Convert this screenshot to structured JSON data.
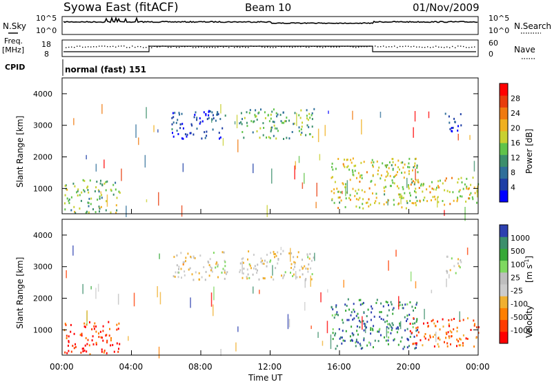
{
  "header": {
    "station": "Syowa East (fitACF)",
    "beam": "Beam 10",
    "date": "01/Nov/2009"
  },
  "top_panel": {
    "left_label": "N.Sky",
    "right_label": "N.Search",
    "left_ticks": [
      "10^5",
      "10^0"
    ],
    "right_ticks": [
      "10^5",
      "10^0"
    ]
  },
  "freq_panel": {
    "left_label_1": "Freq.",
    "left_label_2": "[MHz]",
    "right_label": "Nave",
    "left_ticks": [
      "18",
      "8"
    ],
    "right_ticks": [
      "60",
      "0"
    ]
  },
  "cpid": {
    "label": "CPID",
    "value": "normal (fast) 151"
  },
  "colors": {
    "power_scale": [
      "#0000ff",
      "#1e3fa6",
      "#2f6f9a",
      "#3c8f6c",
      "#60c34a",
      "#c8d030",
      "#f0b020",
      "#f07a10",
      "#e83c0c",
      "#ff0000"
    ],
    "velocity_scale": [
      "#ff0000",
      "#ff3c00",
      "#ff7f00",
      "#f0b030",
      "#cccccc",
      "#bebebe",
      "#7fd860",
      "#36a838",
      "#3c8f6c",
      "#2d40b0"
    ]
  },
  "chart_data": [
    {
      "type": "heatmap",
      "title": "Power",
      "ylabel": "Slant Range [km]",
      "xlabel": "Time UT",
      "ylim": [
        200,
        4500
      ],
      "xlim_hours": [
        0,
        24
      ],
      "x_ticks": [
        "00:00",
        "04:00",
        "08:00",
        "12:00",
        "16:00",
        "20:00",
        "00:00"
      ],
      "y_ticks": [
        "1000",
        "2000",
        "3000",
        "4000"
      ],
      "colorbar": {
        "label": "Power [dB]",
        "ticks": [
          "28",
          "24",
          "20",
          "16",
          "12",
          "8",
          "4"
        ]
      },
      "regions": [
        {
          "t0": 0.1,
          "t1": 3.3,
          "r0": 250,
          "r1": 1300,
          "level": 0.45
        },
        {
          "t0": 6.3,
          "t1": 9.5,
          "r0": 2600,
          "r1": 3500,
          "level": 0.15
        },
        {
          "t0": 10.2,
          "t1": 14.5,
          "r0": 2600,
          "r1": 3550,
          "level": 0.4
        },
        {
          "t0": 15.5,
          "t1": 20.5,
          "r0": 400,
          "r1": 2000,
          "level": 0.55
        },
        {
          "t0": 20.0,
          "t1": 24.0,
          "r0": 500,
          "r1": 1400,
          "level": 0.6
        },
        {
          "t0": 22.0,
          "t1": 23.0,
          "r0": 2800,
          "r1": 3400,
          "level": 0.15
        }
      ]
    },
    {
      "type": "heatmap",
      "title": "Velocity",
      "ylabel": "Slant Range [km]",
      "xlabel": "Time UT",
      "ylim": [
        200,
        4500
      ],
      "xlim_hours": [
        0,
        24
      ],
      "x_ticks": [
        "00:00",
        "04:00",
        "08:00",
        "12:00",
        "16:00",
        "20:00",
        "00:00"
      ],
      "y_ticks": [
        "1000",
        "2000",
        "3000",
        "4000"
      ],
      "colorbar": {
        "label": "Velocity [m s^-1]",
        "ticks": [
          "1000",
          "500",
          "100",
          "25",
          "-25",
          "-100",
          "-500",
          "-1000"
        ]
      },
      "regions": [
        {
          "t0": 0.1,
          "t1": 3.3,
          "r0": 250,
          "r1": 1300,
          "level": 0.1
        },
        {
          "t0": 6.3,
          "t1": 9.5,
          "r0": 2600,
          "r1": 3500,
          "level": 0.47
        },
        {
          "t0": 10.2,
          "t1": 14.5,
          "r0": 2600,
          "r1": 3550,
          "level": 0.48
        },
        {
          "t0": 15.5,
          "t1": 20.5,
          "r0": 400,
          "r1": 2000,
          "level": 0.85
        },
        {
          "t0": 20.0,
          "t1": 24.0,
          "r0": 500,
          "r1": 1400,
          "level": 0.2
        },
        {
          "t0": 22.0,
          "t1": 23.0,
          "r0": 2800,
          "r1": 3400,
          "level": 0.5
        }
      ]
    }
  ]
}
